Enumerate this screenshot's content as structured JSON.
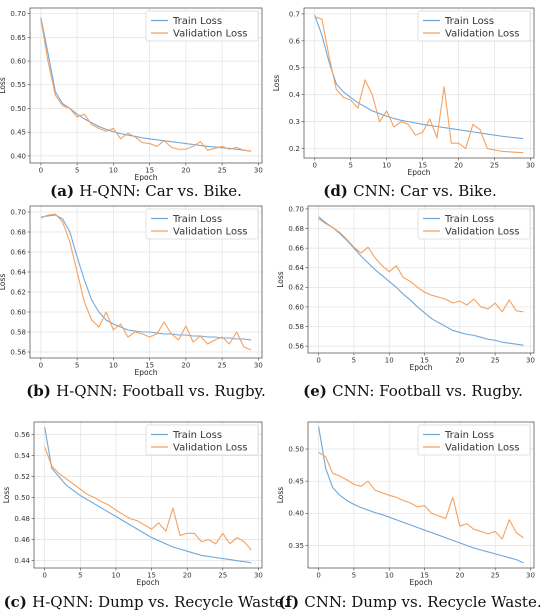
{
  "chart_data": [
    {
      "type": "line",
      "caption_letter": "(a)",
      "caption_text": "H-QNN: Car vs. Bike.",
      "xlabel": "Epoch",
      "ylabel": "Loss",
      "xlim": [
        -1.5,
        30.5
      ],
      "ylim": [
        0.385,
        0.712
      ],
      "xticks": [
        0,
        5,
        10,
        15,
        20,
        25,
        30
      ],
      "yticks": [
        0.4,
        0.45,
        0.5,
        0.55,
        0.6,
        0.65,
        0.7
      ],
      "ytick_labels": [
        "0.40",
        "0.45",
        "0.50",
        "0.55",
        "0.60",
        "0.65",
        "0.70"
      ],
      "legend_position": "top-right",
      "grid": true,
      "series": [
        {
          "name": "Train Loss",
          "color": "#6fa8dc",
          "x": [
            0,
            1,
            2,
            3,
            4,
            5,
            6,
            7,
            8,
            9,
            10,
            11,
            12,
            13,
            14,
            15,
            16,
            17,
            18,
            19,
            20,
            21,
            22,
            23,
            24,
            25,
            26,
            27,
            28,
            29
          ],
          "values": [
            0.692,
            0.615,
            0.535,
            0.51,
            0.5,
            0.488,
            0.478,
            0.47,
            0.462,
            0.456,
            0.451,
            0.447,
            0.444,
            0.441,
            0.438,
            0.436,
            0.434,
            0.432,
            0.43,
            0.428,
            0.426,
            0.424,
            0.422,
            0.42,
            0.419,
            0.417,
            0.416,
            0.414,
            0.412,
            0.41
          ]
        },
        {
          "name": "Validation Loss",
          "color": "#f6a15e",
          "x": [
            0,
            1,
            2,
            3,
            4,
            5,
            6,
            7,
            8,
            9,
            10,
            11,
            12,
            13,
            14,
            15,
            16,
            17,
            18,
            19,
            20,
            21,
            22,
            23,
            24,
            25,
            26,
            27,
            28,
            29
          ],
          "values": [
            0.688,
            0.598,
            0.528,
            0.506,
            0.5,
            0.482,
            0.488,
            0.466,
            0.458,
            0.452,
            0.458,
            0.436,
            0.448,
            0.44,
            0.428,
            0.426,
            0.42,
            0.432,
            0.418,
            0.414,
            0.414,
            0.42,
            0.43,
            0.412,
            0.416,
            0.42,
            0.414,
            0.418,
            0.412,
            0.41
          ]
        }
      ]
    },
    {
      "type": "line",
      "caption_letter": "(d)",
      "caption_text": "CNN: Car vs. Bike.",
      "xlabel": "Epoch",
      "ylabel": "Loss",
      "xlim": [
        -1.5,
        30.5
      ],
      "ylim": [
        0.165,
        0.722
      ],
      "xticks": [
        0,
        5,
        10,
        15,
        20,
        25,
        30
      ],
      "yticks": [
        0.2,
        0.3,
        0.4,
        0.5,
        0.6,
        0.7
      ],
      "ytick_labels": [
        "0.2",
        "0.3",
        "0.4",
        "0.5",
        "0.6",
        "0.7"
      ],
      "legend_position": "top-right",
      "grid": true,
      "series": [
        {
          "name": "Train Loss",
          "color": "#6fa8dc",
          "x": [
            0,
            1,
            2,
            3,
            4,
            5,
            6,
            7,
            8,
            9,
            10,
            11,
            12,
            13,
            14,
            15,
            16,
            17,
            18,
            19,
            20,
            21,
            22,
            23,
            24,
            25,
            26,
            27,
            28,
            29
          ],
          "values": [
            0.695,
            0.62,
            0.52,
            0.44,
            0.41,
            0.39,
            0.37,
            0.355,
            0.34,
            0.33,
            0.32,
            0.312,
            0.305,
            0.3,
            0.295,
            0.29,
            0.286,
            0.282,
            0.278,
            0.274,
            0.27,
            0.266,
            0.262,
            0.258,
            0.254,
            0.25,
            0.246,
            0.243,
            0.24,
            0.237
          ]
        },
        {
          "name": "Validation Loss",
          "color": "#f6a15e",
          "x": [
            0,
            1,
            2,
            3,
            4,
            5,
            6,
            7,
            8,
            9,
            10,
            11,
            12,
            13,
            14,
            15,
            16,
            17,
            18,
            19,
            20,
            21,
            22,
            23,
            24,
            25,
            26,
            27,
            28,
            29
          ],
          "values": [
            0.69,
            0.68,
            0.54,
            0.42,
            0.39,
            0.38,
            0.35,
            0.455,
            0.4,
            0.3,
            0.34,
            0.28,
            0.3,
            0.29,
            0.25,
            0.26,
            0.31,
            0.24,
            0.43,
            0.22,
            0.22,
            0.2,
            0.29,
            0.27,
            0.2,
            0.195,
            0.19,
            0.188,
            0.186,
            0.185
          ]
        }
      ]
    },
    {
      "type": "line",
      "caption_letter": "(b)",
      "caption_text": "H-QNN: Football vs. Rugby.",
      "xlabel": "Epoch",
      "ylabel": "Loss",
      "xlim": [
        -1.5,
        30.5
      ],
      "ylim": [
        0.554,
        0.706
      ],
      "xticks": [
        0,
        5,
        10,
        15,
        20,
        25,
        30
      ],
      "yticks": [
        0.56,
        0.58,
        0.6,
        0.62,
        0.64,
        0.66,
        0.68,
        0.7
      ],
      "ytick_labels": [
        "0.56",
        "0.58",
        "0.60",
        "0.62",
        "0.64",
        "0.66",
        "0.68",
        "0.70"
      ],
      "legend_position": "top-right",
      "grid": true,
      "series": [
        {
          "name": "Train Loss",
          "color": "#6fa8dc",
          "x": [
            0,
            1,
            2,
            3,
            4,
            5,
            6,
            7,
            8,
            9,
            10,
            11,
            12,
            13,
            14,
            15,
            16,
            17,
            18,
            19,
            20,
            21,
            22,
            23,
            24,
            25,
            26,
            27,
            28,
            29
          ],
          "values": [
            0.695,
            0.696,
            0.697,
            0.693,
            0.68,
            0.655,
            0.632,
            0.612,
            0.6,
            0.592,
            0.588,
            0.585,
            0.582,
            0.581,
            0.58,
            0.58,
            0.579,
            0.578,
            0.578,
            0.577,
            0.577,
            0.576,
            0.576,
            0.575,
            0.575,
            0.574,
            0.574,
            0.573,
            0.573,
            0.572
          ]
        },
        {
          "name": "Validation Loss",
          "color": "#f6a15e",
          "x": [
            0,
            1,
            2,
            3,
            4,
            5,
            6,
            7,
            8,
            9,
            10,
            11,
            12,
            13,
            14,
            15,
            16,
            17,
            18,
            19,
            20,
            21,
            22,
            23,
            24,
            25,
            26,
            27,
            28,
            29
          ],
          "values": [
            0.694,
            0.697,
            0.698,
            0.69,
            0.67,
            0.64,
            0.61,
            0.592,
            0.585,
            0.6,
            0.582,
            0.588,
            0.575,
            0.58,
            0.578,
            0.575,
            0.578,
            0.59,
            0.578,
            0.572,
            0.586,
            0.57,
            0.576,
            0.568,
            0.572,
            0.575,
            0.568,
            0.58,
            0.565,
            0.562
          ]
        }
      ]
    },
    {
      "type": "line",
      "caption_letter": "(e)",
      "caption_text": "CNN: Football vs. Rugby.",
      "xlabel": "Epoch",
      "ylabel": "Loss",
      "xlim": [
        -1.5,
        30.5
      ],
      "ylim": [
        0.553,
        0.703
      ],
      "xticks": [
        0,
        5,
        10,
        15,
        20,
        25,
        30
      ],
      "yticks": [
        0.56,
        0.58,
        0.6,
        0.62,
        0.64,
        0.66,
        0.68,
        0.7
      ],
      "ytick_labels": [
        "0.56",
        "0.58",
        "0.60",
        "0.62",
        "0.64",
        "0.66",
        "0.68",
        "0.70"
      ],
      "legend_position": "top-right",
      "grid": true,
      "series": [
        {
          "name": "Train Loss",
          "color": "#6fa8dc",
          "x": [
            0,
            1,
            2,
            3,
            4,
            5,
            6,
            7,
            8,
            9,
            10,
            11,
            12,
            13,
            14,
            15,
            16,
            17,
            18,
            19,
            20,
            21,
            22,
            23,
            24,
            25,
            26,
            27,
            28,
            29
          ],
          "values": [
            0.692,
            0.686,
            0.681,
            0.675,
            0.668,
            0.66,
            0.652,
            0.645,
            0.638,
            0.632,
            0.626,
            0.62,
            0.613,
            0.607,
            0.6,
            0.594,
            0.588,
            0.584,
            0.58,
            0.576,
            0.574,
            0.572,
            0.571,
            0.569,
            0.567,
            0.566,
            0.564,
            0.563,
            0.562,
            0.561
          ]
        },
        {
          "name": "Validation Loss",
          "color": "#f6a15e",
          "x": [
            0,
            1,
            2,
            3,
            4,
            5,
            6,
            7,
            8,
            9,
            10,
            11,
            12,
            13,
            14,
            15,
            16,
            17,
            18,
            19,
            20,
            21,
            22,
            23,
            24,
            25,
            26,
            27,
            28,
            29
          ],
          "values": [
            0.69,
            0.685,
            0.681,
            0.676,
            0.669,
            0.661,
            0.655,
            0.661,
            0.65,
            0.642,
            0.636,
            0.642,
            0.63,
            0.626,
            0.62,
            0.615,
            0.612,
            0.61,
            0.608,
            0.604,
            0.606,
            0.602,
            0.608,
            0.6,
            0.598,
            0.604,
            0.595,
            0.607,
            0.596,
            0.595
          ]
        }
      ]
    },
    {
      "type": "line",
      "caption_letter": "(c)",
      "caption_text": "H-QNN: Dump vs. Recycle Waste.",
      "xlabel": "Epoch",
      "ylabel": "Loss",
      "xlim": [
        -1.5,
        30.5
      ],
      "ylim": [
        0.433,
        0.572
      ],
      "xticks": [
        0,
        5,
        10,
        15,
        20,
        25,
        30
      ],
      "yticks": [
        0.44,
        0.46,
        0.48,
        0.5,
        0.52,
        0.54,
        0.56
      ],
      "ytick_labels": [
        "0.44",
        "0.46",
        "0.48",
        "0.50",
        "0.52",
        "0.54",
        "0.56"
      ],
      "legend_position": "top-right",
      "grid": true,
      "series": [
        {
          "name": "Train Loss",
          "color": "#6fa8dc",
          "x": [
            0,
            1,
            2,
            3,
            4,
            5,
            6,
            7,
            8,
            9,
            10,
            11,
            12,
            13,
            14,
            15,
            16,
            17,
            18,
            19,
            20,
            21,
            22,
            23,
            24,
            25,
            26,
            27,
            28,
            29
          ],
          "values": [
            0.567,
            0.528,
            0.52,
            0.512,
            0.507,
            0.502,
            0.498,
            0.494,
            0.49,
            0.486,
            0.482,
            0.478,
            0.474,
            0.47,
            0.466,
            0.462,
            0.459,
            0.456,
            0.453,
            0.451,
            0.449,
            0.447,
            0.445,
            0.444,
            0.443,
            0.442,
            0.441,
            0.44,
            0.439,
            0.438
          ]
        },
        {
          "name": "Validation Loss",
          "color": "#f6a15e",
          "x": [
            0,
            1,
            2,
            3,
            4,
            5,
            6,
            7,
            8,
            9,
            10,
            11,
            12,
            13,
            14,
            15,
            16,
            17,
            18,
            19,
            20,
            21,
            22,
            23,
            24,
            25,
            26,
            27,
            28,
            29
          ],
          "values": [
            0.548,
            0.53,
            0.523,
            0.518,
            0.513,
            0.508,
            0.503,
            0.5,
            0.496,
            0.493,
            0.488,
            0.484,
            0.48,
            0.478,
            0.474,
            0.47,
            0.476,
            0.468,
            0.49,
            0.464,
            0.466,
            0.466,
            0.458,
            0.46,
            0.456,
            0.466,
            0.456,
            0.462,
            0.458,
            0.45
          ]
        }
      ]
    },
    {
      "type": "line",
      "caption_letter": "(f)",
      "caption_text": "CNN: Dump vs. Recycle Waste.",
      "xlabel": "Epoch",
      "ylabel": "Loss",
      "xlim": [
        -1.5,
        30.5
      ],
      "ylim": [
        0.315,
        0.542
      ],
      "xticks": [
        0,
        5,
        10,
        15,
        20,
        25,
        30
      ],
      "yticks": [
        0.35,
        0.4,
        0.45,
        0.5
      ],
      "ytick_labels": [
        "0.35",
        "0.40",
        "0.45",
        "0.50"
      ],
      "legend_position": "top-right",
      "grid": true,
      "series": [
        {
          "name": "Train Loss",
          "color": "#6fa8dc",
          "x": [
            0,
            1,
            2,
            3,
            4,
            5,
            6,
            7,
            8,
            9,
            10,
            11,
            12,
            13,
            14,
            15,
            16,
            17,
            18,
            19,
            20,
            21,
            22,
            23,
            24,
            25,
            26,
            27,
            28,
            29
          ],
          "values": [
            0.535,
            0.47,
            0.44,
            0.428,
            0.42,
            0.414,
            0.409,
            0.405,
            0.401,
            0.398,
            0.394,
            0.39,
            0.386,
            0.382,
            0.378,
            0.374,
            0.37,
            0.366,
            0.362,
            0.358,
            0.354,
            0.35,
            0.346,
            0.343,
            0.34,
            0.337,
            0.334,
            0.331,
            0.328,
            0.323
          ]
        },
        {
          "name": "Validation Loss",
          "color": "#f6a15e",
          "x": [
            0,
            1,
            2,
            3,
            4,
            5,
            6,
            7,
            8,
            9,
            10,
            11,
            12,
            13,
            14,
            15,
            16,
            17,
            18,
            19,
            20,
            21,
            22,
            23,
            24,
            25,
            26,
            27,
            28,
            29
          ],
          "values": [
            0.495,
            0.488,
            0.462,
            0.458,
            0.452,
            0.445,
            0.442,
            0.45,
            0.436,
            0.432,
            0.428,
            0.425,
            0.42,
            0.416,
            0.41,
            0.412,
            0.4,
            0.396,
            0.392,
            0.425,
            0.38,
            0.384,
            0.375,
            0.372,
            0.368,
            0.372,
            0.36,
            0.39,
            0.37,
            0.362
          ]
        }
      ]
    }
  ]
}
